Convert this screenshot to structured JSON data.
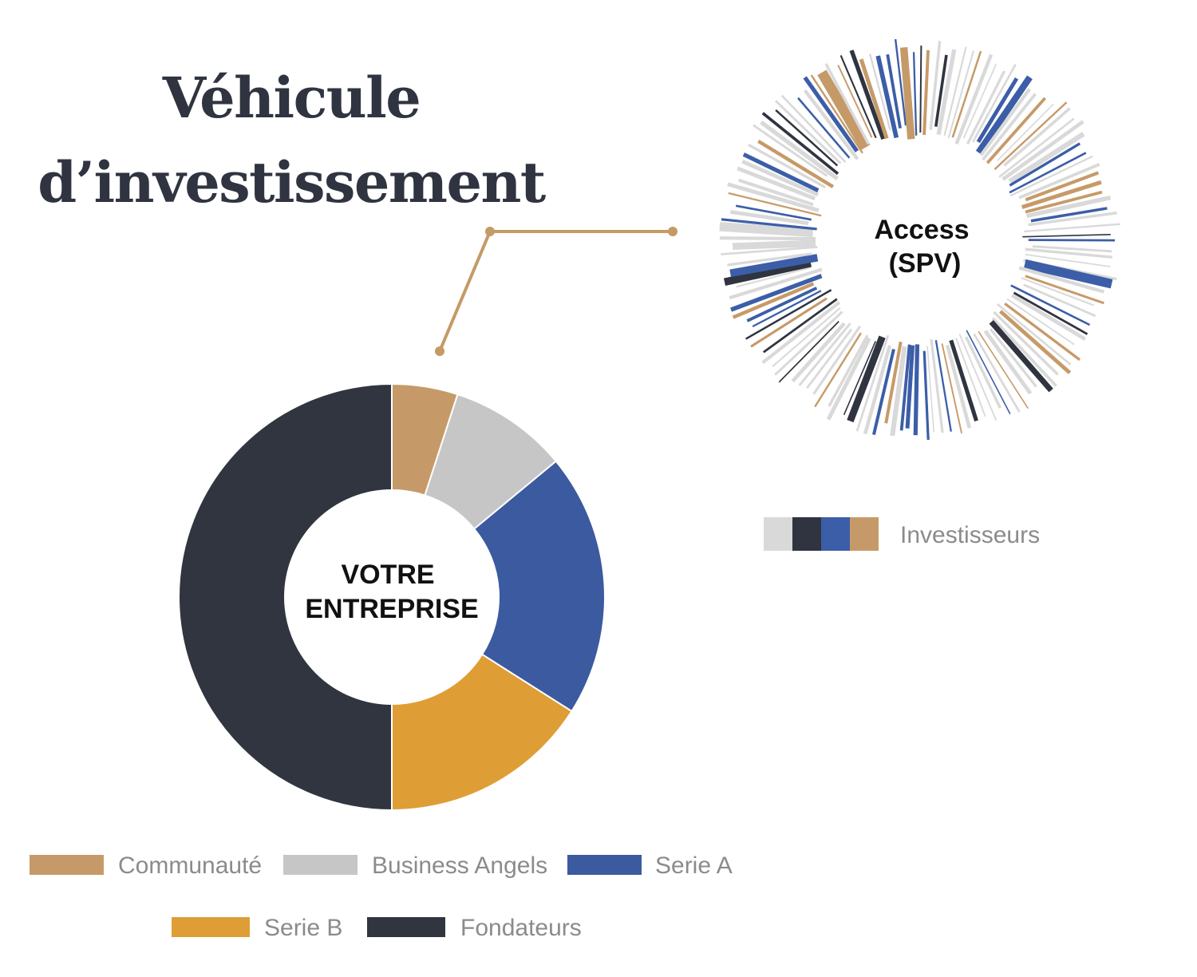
{
  "title": {
    "line1": "Véhicule",
    "line2": "d’investissement"
  },
  "colors": {
    "communaute": "#c69a68",
    "business_angels": "#c6c6c6",
    "serie_a": "#3c5aa0",
    "serie_b": "#de9e35",
    "fondateurs": "#30353f",
    "connector": "#c49a66",
    "spv_light": "#d9d9d9",
    "spv_dark": "#2f3440",
    "spv_blue": "#3c5ea8",
    "spv_gold": "#c69a68"
  },
  "chart_data": [
    {
      "type": "pie",
      "center_label": [
        "VOTRE",
        "ENTREPRISE"
      ],
      "series": [
        {
          "name": "Communauté",
          "value": 5,
          "color": "#c69a68"
        },
        {
          "name": "Business Angels",
          "value": 9,
          "color": "#c6c6c6"
        },
        {
          "name": "Serie A",
          "value": 20,
          "color": "#3c5aa0"
        },
        {
          "name": "Serie B",
          "value": 16,
          "color": "#de9e35"
        },
        {
          "name": "Fondateurs",
          "value": 50,
          "color": "#30353f"
        }
      ],
      "legend": [
        "Communauté",
        "Business Angels",
        "Serie A",
        "Serie B",
        "Fondateurs"
      ]
    },
    {
      "type": "pie",
      "center_label": [
        "Access",
        "(SPV)"
      ],
      "legend": [
        "Investisseurs"
      ],
      "legend_colors": [
        "#d9d9d9",
        "#2f3440",
        "#3c5ea8",
        "#c69a68"
      ],
      "slices": 140
    }
  ]
}
